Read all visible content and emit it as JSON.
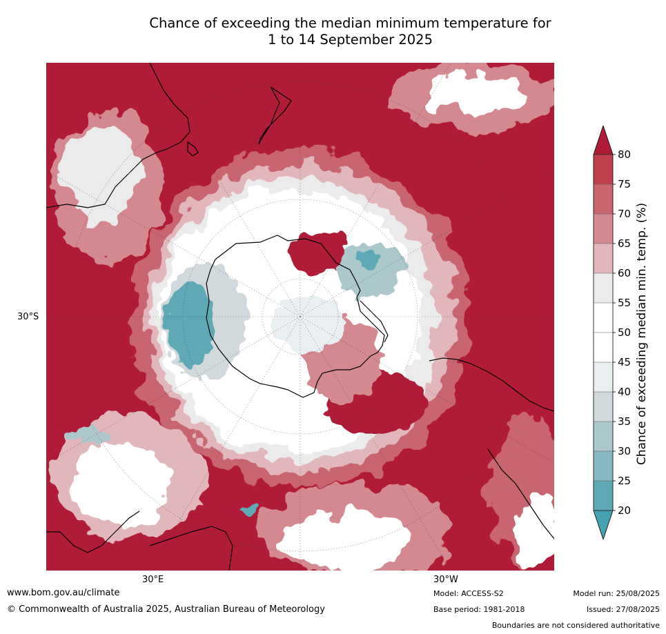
{
  "title_line1": "Chance of exceeding the median minimum temperature for",
  "title_line2": "1 to 14 September 2025",
  "map": {
    "lat_label": "30°S",
    "lon_label_east": "30°E",
    "lon_label_west": "30°W",
    "colors": {
      "above80": "#b01c38",
      "c75_80": "#c0414e",
      "c70_75": "#c9656f",
      "c65_70": "#d48890",
      "c60_65": "#e2b7bb",
      "c55_60": "#ebebeb",
      "c45_55": "#ffffff",
      "c40_45": "#e9eef0",
      "c35_40": "#d2d9dc",
      "c30_35": "#acc8cc",
      "c25_30": "#86b9c2",
      "c20_25": "#5fa8b5",
      "below20": "#46a1b0"
    }
  },
  "colorbar": {
    "title": "Chance of exceeding median min. temp. (%)",
    "ticks": [
      "80",
      "75",
      "70",
      "65",
      "60",
      "55",
      "50",
      "45",
      "40",
      "35",
      "30",
      "25",
      "20"
    ],
    "colors": [
      "#c0414e",
      "#c9656f",
      "#d48890",
      "#e2b7bb",
      "#ebebeb",
      "#ffffff",
      "#ffffff",
      "#e9eef0",
      "#d2d9dc",
      "#acc8cc",
      "#86b9c2",
      "#5fa8b5"
    ],
    "top_extend_color": "#b01c38",
    "bottom_extend_color": "#46a1b0"
  },
  "footer": {
    "url": "www.bom.gov.au/climate",
    "copyright": "© Commonwealth of Australia 2025, Australian Bureau of Meteorology",
    "model": "Model: ACCESS-S2",
    "base_period": "Base period: 1981-2018",
    "model_run": "Model run: 25/08/2025",
    "issued": "Issued: 27/08/2025",
    "disclaimer": "Boundaries are not considered authoritative"
  }
}
